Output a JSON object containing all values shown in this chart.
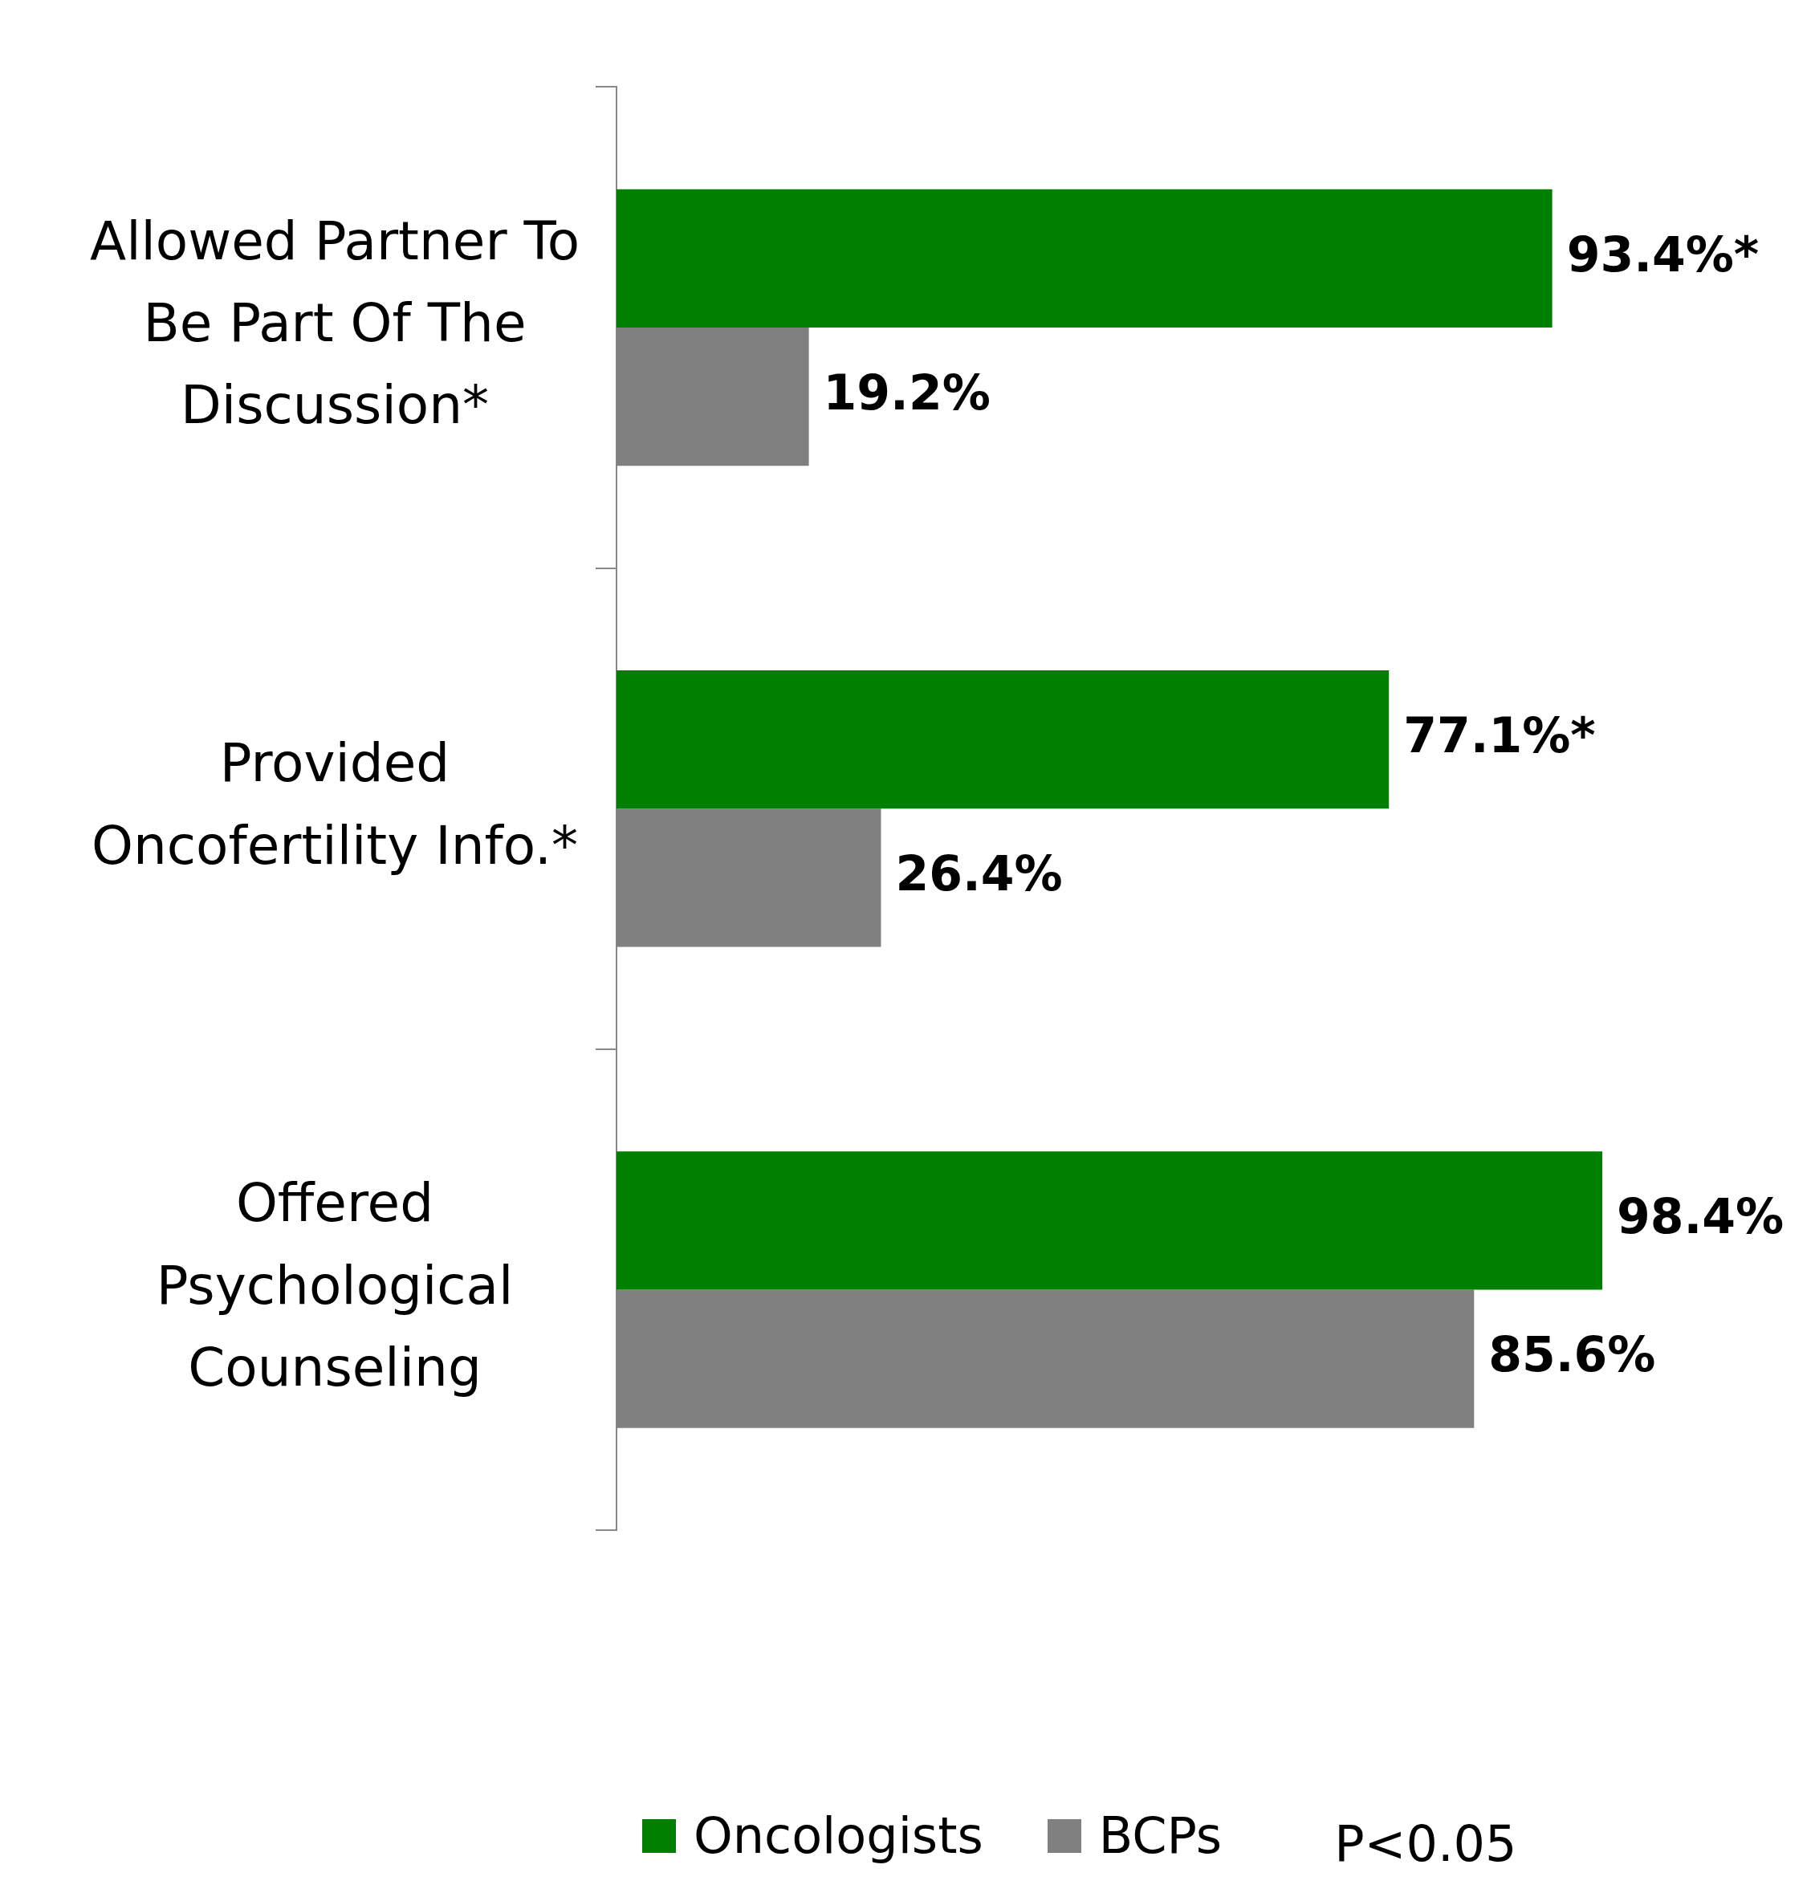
{
  "chart_data": {
    "type": "bar",
    "orientation": "horizontal",
    "categories": [
      "Allowed Partner To Be Part Of The Discussion*",
      "Provided Oncofertility Info.*",
      "Offered Psychological Counseling"
    ],
    "series": [
      {
        "name": "Oncologists",
        "color": "#008000",
        "values": [
          93.4,
          77.1,
          98.4
        ],
        "value_labels": [
          "93.4%*",
          "77.1%*",
          "98.4%"
        ]
      },
      {
        "name": "BCPs",
        "color": "#808080",
        "values": [
          19.2,
          26.4,
          85.6
        ],
        "value_labels": [
          "19.2%",
          "26.4%",
          "85.6%"
        ]
      }
    ],
    "legend": "bottom",
    "tick_labels": "y",
    "annotations": [
      "P<0.05"
    ]
  }
}
